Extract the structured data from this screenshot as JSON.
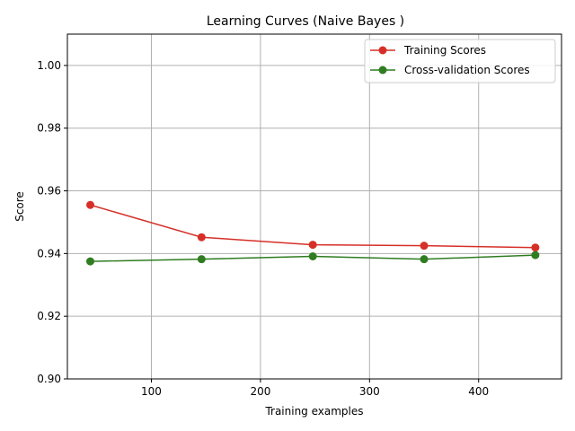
{
  "chart_data": {
    "type": "line",
    "title": "Learning Curves (Naive Bayes )",
    "xlabel": "Training examples",
    "ylabel": "Score",
    "xlim": [
      23,
      476
    ],
    "ylim": [
      0.9,
      1.01
    ],
    "xticks": [
      100,
      200,
      300,
      400
    ],
    "yticks": [
      0.9,
      0.92,
      0.94,
      0.96,
      0.98,
      1.0
    ],
    "grid": true,
    "legend_position": "upper right",
    "x": [
      44,
      146,
      248,
      350,
      452
    ],
    "series": [
      {
        "name": "Training Scores",
        "color": "#d62f28",
        "values": [
          0.9555,
          0.9452,
          0.9428,
          0.9425,
          0.9419
        ]
      },
      {
        "name": "Cross-validation Scores",
        "color": "#2f7d20",
        "values": [
          0.9375,
          0.9382,
          0.9391,
          0.9382,
          0.9395
        ]
      }
    ]
  }
}
